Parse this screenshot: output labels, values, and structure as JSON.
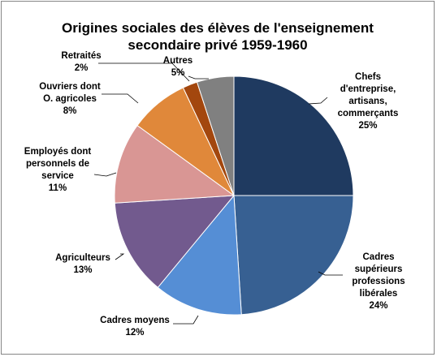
{
  "chart_data": {
    "type": "pie",
    "title_lines": [
      "Origines sociales des élèves de l'enseignement",
      "secondaire privé 1959-1960"
    ],
    "slices": [
      {
        "label_lines": [
          "Chefs",
          "d'entreprise,",
          "artisans,",
          "commerçants"
        ],
        "value_text": "25%",
        "value": 25,
        "color": "#1F3A60"
      },
      {
        "label_lines": [
          "Cadres",
          "supérieurs",
          "professions",
          "libérales"
        ],
        "value_text": "24%",
        "value": 24,
        "color": "#376092"
      },
      {
        "label_lines": [
          "Cadres moyens"
        ],
        "value_text": "12%",
        "value": 12,
        "color": "#558ED5"
      },
      {
        "label_lines": [
          "Agriculteurs"
        ],
        "value_text": "13%",
        "value": 13,
        "color": "#725A8E"
      },
      {
        "label_lines": [
          "Employés dont",
          "personnels de",
          "service"
        ],
        "value_text": "11%",
        "value": 11,
        "color": "#D99694"
      },
      {
        "label_lines": [
          "Ouvriers dont",
          "O. agricoles"
        ],
        "value_text": "8%",
        "value": 8,
        "color": "#E0883A"
      },
      {
        "label_lines": [
          "Retraités"
        ],
        "value_text": "2%",
        "value": 2,
        "color": "#A3470E"
      },
      {
        "label_lines": [
          "Autres"
        ],
        "value_text": "5%",
        "value": 5,
        "color": "#808080"
      }
    ],
    "legend": "none",
    "data_labels": "outside with leader lines"
  }
}
